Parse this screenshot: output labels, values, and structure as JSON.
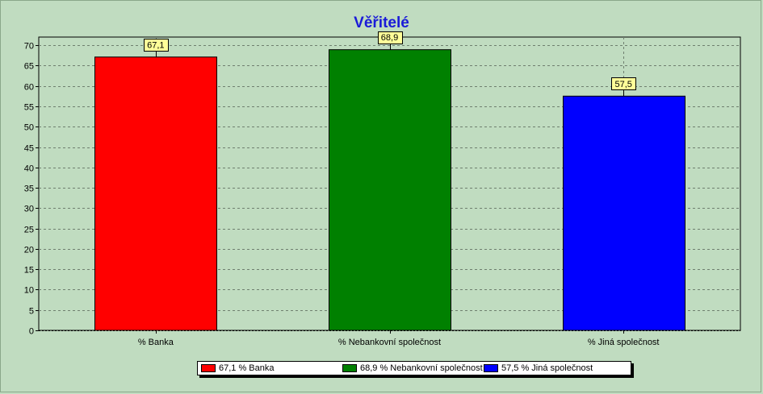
{
  "chart_data": {
    "type": "bar",
    "title": "Věřitelé",
    "categories": [
      "% Banka",
      "% Nebankovní společnost",
      "% Jiná společnost"
    ],
    "values": [
      67.1,
      68.9,
      57.5
    ],
    "value_labels": [
      "67,1",
      "68,9",
      "57,5"
    ],
    "colors": [
      "#ff0000",
      "#008000",
      "#0000ff"
    ],
    "ylim": [
      0,
      72
    ],
    "yticks": [
      0,
      5,
      10,
      15,
      20,
      25,
      30,
      35,
      40,
      45,
      50,
      55,
      60,
      65,
      70
    ],
    "grid": true,
    "legend": {
      "position": "bottom",
      "entries": [
        "67,1 % Banka",
        "68,9 % Nebankovní společnost",
        "57,5 % Jiná společnost"
      ]
    }
  }
}
